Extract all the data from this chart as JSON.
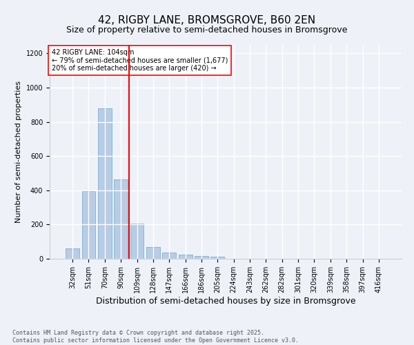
{
  "title": "42, RIGBY LANE, BROMSGROVE, B60 2EN",
  "subtitle": "Size of property relative to semi-detached houses in Bromsgrove",
  "xlabel": "Distribution of semi-detached houses by size in Bromsgrove",
  "ylabel": "Number of semi-detached properties",
  "footer": "Contains HM Land Registry data © Crown copyright and database right 2025.\nContains public sector information licensed under the Open Government Licence v3.0.",
  "categories": [
    "32sqm",
    "51sqm",
    "70sqm",
    "90sqm",
    "109sqm",
    "128sqm",
    "147sqm",
    "166sqm",
    "186sqm",
    "205sqm",
    "224sqm",
    "243sqm",
    "262sqm",
    "282sqm",
    "301sqm",
    "320sqm",
    "339sqm",
    "358sqm",
    "397sqm",
    "416sqm"
  ],
  "values": [
    60,
    395,
    880,
    465,
    205,
    68,
    35,
    25,
    15,
    12,
    0,
    0,
    0,
    0,
    0,
    0,
    0,
    0,
    0,
    0
  ],
  "bar_color": "#b8cce4",
  "bar_edge_color": "#7ab0d4",
  "vline_color": "red",
  "annotation_text": "42 RIGBY LANE: 104sqm\n← 79% of semi-detached houses are smaller (1,677)\n20% of semi-detached houses are larger (420) →",
  "annotation_box_color": "white",
  "annotation_box_edge_color": "red",
  "ylim": [
    0,
    1250
  ],
  "yticks": [
    0,
    200,
    400,
    600,
    800,
    1000,
    1200
  ],
  "background_color": "#eef2f8",
  "plot_background_color": "#eef2f8",
  "grid_color": "white",
  "title_fontsize": 11,
  "subtitle_fontsize": 9,
  "xlabel_fontsize": 9,
  "ylabel_fontsize": 8,
  "tick_fontsize": 7,
  "footer_fontsize": 6
}
